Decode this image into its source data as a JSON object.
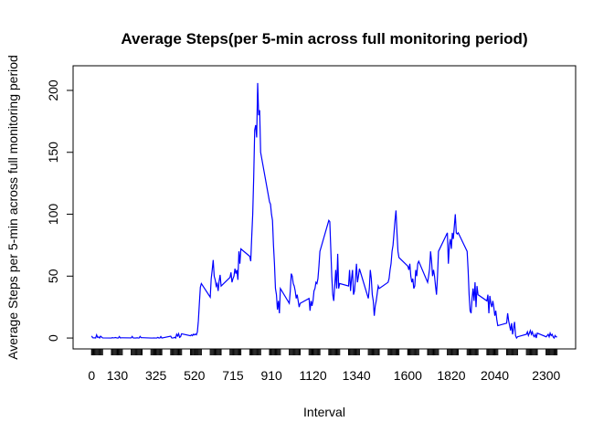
{
  "chart_data": {
    "type": "line",
    "title": "Average Steps(per 5-min across full monitoring period)",
    "x_label": "Interval",
    "y_label": "Average Steps per 5-min across full monitoring period",
    "color": "#0000ff",
    "x": [
      0,
      5,
      10,
      15,
      20,
      25,
      30,
      35,
      40,
      45,
      50,
      55,
      100,
      105,
      110,
      115,
      120,
      125,
      130,
      135,
      140,
      145,
      150,
      155,
      200,
      205,
      210,
      215,
      220,
      225,
      230,
      235,
      240,
      245,
      250,
      255,
      300,
      305,
      310,
      315,
      320,
      325,
      330,
      335,
      340,
      345,
      350,
      355,
      400,
      405,
      410,
      415,
      420,
      425,
      430,
      435,
      440,
      445,
      450,
      455,
      500,
      505,
      510,
      515,
      520,
      525,
      530,
      535,
      540,
      545,
      550,
      555,
      600,
      605,
      610,
      615,
      620,
      625,
      630,
      635,
      640,
      645,
      650,
      655,
      700,
      705,
      710,
      715,
      720,
      725,
      730,
      735,
      740,
      745,
      750,
      755,
      800,
      805,
      810,
      815,
      820,
      825,
      830,
      835,
      840,
      845,
      850,
      855,
      900,
      905,
      910,
      915,
      920,
      925,
      930,
      935,
      940,
      945,
      950,
      955,
      1000,
      1005,
      1010,
      1015,
      1020,
      1025,
      1030,
      1035,
      1040,
      1045,
      1050,
      1055,
      1100,
      1105,
      1110,
      1115,
      1120,
      1125,
      1130,
      1135,
      1140,
      1145,
      1150,
      1155,
      1200,
      1205,
      1210,
      1215,
      1220,
      1225,
      1230,
      1235,
      1240,
      1245,
      1250,
      1255,
      1300,
      1305,
      1310,
      1315,
      1320,
      1325,
      1330,
      1335,
      1340,
      1345,
      1350,
      1355,
      1400,
      1405,
      1410,
      1415,
      1420,
      1425,
      1430,
      1435,
      1440,
      1445,
      1450,
      1455,
      1500,
      1505,
      1510,
      1515,
      1520,
      1525,
      1530,
      1535,
      1540,
      1545,
      1550,
      1555,
      1600,
      1605,
      1610,
      1615,
      1620,
      1625,
      1630,
      1635,
      1640,
      1645,
      1650,
      1655,
      1700,
      1705,
      1710,
      1715,
      1720,
      1725,
      1730,
      1735,
      1740,
      1745,
      1750,
      1755,
      1800,
      1805,
      1810,
      1815,
      1820,
      1825,
      1830,
      1835,
      1840,
      1845,
      1850,
      1855,
      1900,
      1905,
      1910,
      1915,
      1920,
      1925,
      1930,
      1935,
      1940,
      1945,
      1950,
      1955,
      2000,
      2005,
      2010,
      2015,
      2020,
      2025,
      2030,
      2035,
      2040,
      2045,
      2050,
      2055,
      2100,
      2105,
      2110,
      2115,
      2120,
      2125,
      2130,
      2135,
      2140,
      2145,
      2150,
      2155,
      2200,
      2205,
      2210,
      2215,
      2220,
      2225,
      2230,
      2235,
      2240,
      2245,
      2250,
      2255,
      2300,
      2305,
      2310,
      2315,
      2320,
      2325,
      2330,
      2335,
      2340,
      2345,
      2350,
      2355
    ],
    "values": [
      1.7,
      0.3,
      0.1,
      0.2,
      0,
      2.5,
      0.5,
      0.9,
      0,
      1.5,
      0.8,
      0.1,
      0,
      0.3,
      0.1,
      0.2,
      0.4,
      0.2,
      0,
      0,
      1.2,
      0.1,
      0.2,
      0.2,
      0.1,
      1.3,
      0.1,
      0,
      0.1,
      0,
      0.2,
      0,
      0,
      1.3,
      0.3,
      0.3,
      0,
      0,
      0,
      0.1,
      0,
      0,
      0,
      0.5,
      0,
      0,
      1.2,
      0,
      1.5,
      0.1,
      0,
      0.2,
      0.6,
      0,
      3.1,
      1.6,
      3.5,
      0.5,
      1.1,
      3.4,
      1.8,
      2.6,
      1.9,
      3.1,
      2.5,
      3.2,
      2.6,
      5,
      14,
      28,
      41,
      44,
      33,
      48,
      55,
      63,
      50,
      47,
      42,
      44,
      38,
      46,
      51,
      42,
      49,
      53,
      45,
      48,
      50,
      56,
      52,
      55,
      47,
      70,
      60,
      72,
      66,
      62,
      82,
      100,
      130,
      168,
      172,
      162,
      206,
      180,
      184,
      150,
      110,
      108,
      100,
      95,
      75,
      60,
      40,
      35,
      23,
      30,
      20,
      40,
      28,
      38,
      52,
      50,
      44,
      42,
      38,
      32,
      35,
      30,
      25,
      28,
      32,
      22,
      30,
      26,
      30,
      38,
      40,
      45,
      44,
      48,
      58,
      70,
      95,
      94,
      72,
      50,
      35,
      30,
      42,
      55,
      40,
      68,
      40,
      44,
      42,
      55,
      38,
      48,
      55,
      35,
      38,
      48,
      60,
      45,
      50,
      56,
      32,
      40,
      55,
      48,
      35,
      30,
      18,
      26,
      30,
      36,
      42,
      40,
      45,
      48,
      55,
      60,
      70,
      75,
      85,
      95,
      103,
      85,
      70,
      65,
      58,
      55,
      60,
      50,
      45,
      48,
      40,
      42,
      55,
      50,
      60,
      62,
      45,
      50,
      56,
      70,
      62,
      50,
      55,
      50,
      42,
      35,
      50,
      70,
      85,
      60,
      75,
      80,
      72,
      85,
      80,
      90,
      100,
      85,
      84,
      85,
      70,
      55,
      35,
      22,
      20,
      32,
      40,
      30,
      45,
      25,
      42,
      35,
      30,
      35,
      20,
      34,
      28,
      25,
      30,
      25,
      18,
      22,
      15,
      10,
      12,
      20,
      14,
      10,
      6,
      12,
      3,
      8,
      13,
      2,
      0,
      1,
      3,
      5,
      2,
      4,
      6,
      3,
      5,
      2,
      1,
      3,
      0,
      4,
      1,
      2,
      3,
      1,
      4,
      2,
      3,
      1,
      0,
      2,
      1,
      1
    ],
    "xlim": [
      -94,
      2449
    ],
    "xticks": [
      0,
      130,
      325,
      520,
      715,
      910,
      1120,
      1340,
      1600,
      1820,
      2040,
      2300
    ],
    "ylim": [
      -8.8,
      219.9
    ],
    "yticks": [
      0,
      50,
      100,
      150,
      200
    ]
  }
}
